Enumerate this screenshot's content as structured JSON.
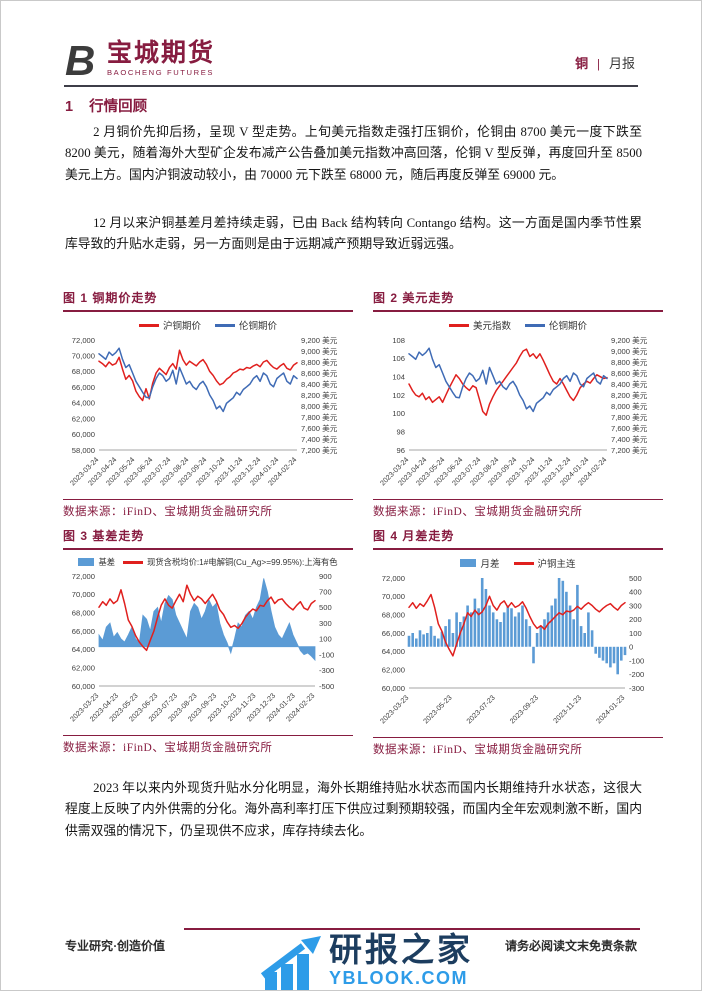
{
  "header": {
    "brand_cn": "宝城期货",
    "brand_en": "BAOCHENG FUTURES",
    "commodity": "铜",
    "divider": "|",
    "report_type": "月报"
  },
  "section": {
    "number": "1",
    "title": "行情回顾"
  },
  "paragraphs": {
    "p1": "2 月铜价先抑后扬，呈现 V 型走势。上旬美元指数走强打压铜价，伦铜由 8700 美元一度下跌至 8200 美元，随着海外大型矿企发布减产公告叠加美元指数冲高回落，伦铜 V 型反弹，再度回升至 8500 美元上方。国内沪铜波动较小，由 70000 元下跌至 68000 元，随后再度反弹至 69000 元。",
    "p2": "12 月以来沪铜基差月差持续走弱，已由 Back 结构转向 Contango 结构。这一方面是国内季节性累库导致的升贴水走弱，另一方面则是由于远期减产预期导致近弱远强。",
    "p3": "2023 年以来内外现货升贴水分化明显，海外长期维持贴水状态而国内长期维持升水状态，这很大程度上反映了内外供需的分化。海外高利率打压下供应过剩预期较强，而国内全年宏观刺激不断，国内供需双强的情况下，仍呈现供不应求，库存持续去化。"
  },
  "strings": {
    "data_source": "数据来源：iFinD、宝城期货金融研究所"
  },
  "footer": {
    "left": "专业研究·创造价值",
    "right": "请务必阅读文末免责条款",
    "watermark_name": "研报之家",
    "watermark_site": "YBLOOK.COM"
  },
  "colors": {
    "brand": "#871c40",
    "red_line": "#e0201e",
    "blue_line": "#3f6bb5",
    "blue_fill": "#5b9bd5"
  },
  "chart_data": [
    {
      "type": "line",
      "title": "图 1 铜期价走势",
      "legend": [
        {
          "label": "沪铜期价",
          "color": "#e0201e",
          "swatch": "line"
        },
        {
          "label": "伦铜期价",
          "color": "#3f6bb5",
          "swatch": "line"
        }
      ],
      "right_pad": 56,
      "left_axis": {
        "min": 58000,
        "max": 72000,
        "ticks": [
          "72,000",
          "70,000",
          "68,000",
          "66,000",
          "64,000",
          "62,000",
          "60,000",
          "58,000"
        ]
      },
      "right_axis": {
        "min": 7200,
        "max": 9200,
        "ticks": [
          "9,200 美元",
          "9,000 美元",
          "8,800 美元",
          "8,600 美元",
          "8,400 美元",
          "8,200 美元",
          "8,000 美元",
          "7,800 美元",
          "7,600 美元",
          "7,400 美元",
          "7,200 美元"
        ]
      },
      "x_labels": [
        "2023-03-24",
        "2023-04-24",
        "2023-05-24",
        "2023-06-24",
        "2023-07-24",
        "2023-08-24",
        "2023-09-24",
        "2023-10-24",
        "2023-11-24",
        "2023-12-24",
        "2024-01-24",
        "2024-02-24"
      ],
      "series": [
        {
          "name": "沪铜期价",
          "axis": "left",
          "style": "line",
          "color": "#e0201e",
          "values": [
            69300,
            69000,
            68600,
            69200,
            68800,
            69000,
            69800,
            68300,
            67000,
            67500,
            66800,
            65500,
            64800,
            64300,
            65800,
            64500,
            66500,
            67800,
            68400,
            68000,
            67600,
            68500,
            69000,
            68300,
            70700,
            69500,
            68800,
            69300,
            69000,
            68700,
            69200,
            69500,
            68900,
            68000,
            67500,
            66800,
            66300,
            66500,
            67000,
            67300,
            67800,
            68000,
            68300,
            68200,
            68500,
            68400,
            68700,
            68900,
            68600,
            69200,
            69400,
            68900,
            68500,
            68300,
            68700,
            69000,
            68400,
            68200,
            68800,
            69100
          ]
        },
        {
          "name": "伦铜期价",
          "axis": "right",
          "style": "line",
          "color": "#3f6bb5",
          "values": [
            8950,
            8900,
            8850,
            8980,
            8920,
            8970,
            9050,
            8850,
            8700,
            8750,
            8600,
            8450,
            8350,
            8250,
            8160,
            8150,
            8350,
            8500,
            8600,
            8550,
            8450,
            8500,
            8650,
            8400,
            8700,
            8550,
            8400,
            8450,
            8350,
            8300,
            8400,
            8450,
            8350,
            8200,
            8100,
            7950,
            8000,
            7900,
            8050,
            8100,
            8150,
            8250,
            8200,
            8300,
            8350,
            8400,
            8500,
            8550,
            8450,
            8600,
            8550,
            8400,
            8350,
            8500,
            8550,
            8600,
            8450,
            8400,
            8550,
            8500
          ]
        }
      ]
    },
    {
      "type": "line",
      "title": "图 2 美元走势",
      "legend": [
        {
          "label": "美元指数",
          "color": "#e0201e",
          "swatch": "line"
        },
        {
          "label": "伦铜期价",
          "color": "#3f6bb5",
          "swatch": "line"
        }
      ],
      "right_pad": 56,
      "left_axis": {
        "min": 96,
        "max": 108,
        "ticks": [
          "108",
          "106",
          "104",
          "102",
          "100",
          "98",
          "96"
        ]
      },
      "right_axis": {
        "min": 7200,
        "max": 9200,
        "ticks": [
          "9,200 美元",
          "9,000 美元",
          "8,800 美元",
          "8,600 美元",
          "8,400 美元",
          "8,200 美元",
          "8,000 美元",
          "7,800 美元",
          "7,600 美元",
          "7,400 美元",
          "7,200 美元"
        ]
      },
      "x_labels": [
        "2023-03-24",
        "2023-04-24",
        "2023-05-24",
        "2023-06-24",
        "2023-07-24",
        "2023-08-24",
        "2023-09-24",
        "2023-10-24",
        "2023-11-24",
        "2023-12-24",
        "2024-01-24",
        "2024-02-24"
      ],
      "series": [
        {
          "name": "美元指数",
          "axis": "left",
          "style": "line",
          "color": "#e0201e",
          "values": [
            103.2,
            102.5,
            102.0,
            101.8,
            102.2,
            101.5,
            101.8,
            101.2,
            101.5,
            101.8,
            101.2,
            102.0,
            102.8,
            103.5,
            104.2,
            103.8,
            103.2,
            102.8,
            102.5,
            103.0,
            102.8,
            101.5,
            100.2,
            99.8,
            101.0,
            101.8,
            102.5,
            103.0,
            103.5,
            104.0,
            104.5,
            105.0,
            105.5,
            106.2,
            106.8,
            107.0,
            106.2,
            106.5,
            106.0,
            106.5,
            105.8,
            105.0,
            104.2,
            103.5,
            103.2,
            103.8,
            103.2,
            102.5,
            101.8,
            101.4,
            102.0,
            102.8,
            103.2,
            103.5,
            103.3,
            103.8,
            104.2,
            104.0,
            103.8,
            103.9
          ]
        },
        {
          "name": "伦铜期价",
          "axis": "right",
          "style": "line",
          "color": "#3f6bb5",
          "values": [
            8950,
            8900,
            8850,
            8980,
            8920,
            8970,
            9050,
            8850,
            8700,
            8750,
            8600,
            8450,
            8350,
            8250,
            8160,
            8150,
            8350,
            8500,
            8600,
            8550,
            8450,
            8500,
            8650,
            8400,
            8700,
            8550,
            8400,
            8450,
            8350,
            8300,
            8400,
            8450,
            8350,
            8200,
            8100,
            7950,
            8000,
            7900,
            8050,
            8100,
            8150,
            8250,
            8200,
            8300,
            8350,
            8400,
            8500,
            8550,
            8450,
            8600,
            8550,
            8400,
            8350,
            8500,
            8550,
            8600,
            8450,
            8400,
            8550,
            8500
          ]
        }
      ]
    },
    {
      "type": "area",
      "title": "图 3 基差走势",
      "legend": [
        {
          "label": "基差",
          "color": "#5b9bd5",
          "swatch": "rect"
        },
        {
          "label": "现货含税均价:1#电解铜(Cu_Ag>=99.95%):上海有色",
          "color": "#e0201e",
          "swatch": "line"
        }
      ],
      "right_pad": 38,
      "left_axis": {
        "min": 60000,
        "max": 72000,
        "ticks": [
          "72,000",
          "70,000",
          "68,000",
          "66,000",
          "64,000",
          "62,000",
          "60,000"
        ]
      },
      "right_axis": {
        "min": -500,
        "max": 900,
        "ticks": [
          "900",
          "700",
          "500",
          "300",
          "100",
          "-100",
          "-300",
          "-500"
        ]
      },
      "x_labels": [
        "2023-03-23",
        "2023-04-23",
        "2023-05-23",
        "2023-06-23",
        "2023-07-23",
        "2023-08-23",
        "2023-09-23",
        "2023-10-23",
        "2023-11-23",
        "2023-12-23",
        "2024-01-23",
        "2024-02-23"
      ],
      "series": [
        {
          "name": "基差",
          "axis": "right",
          "style": "area",
          "color": "#5b9bd5",
          "values": [
            150,
            80,
            250,
            300,
            120,
            180,
            100,
            60,
            150,
            250,
            100,
            50,
            400,
            350,
            200,
            450,
            500,
            300,
            550,
            650,
            600,
            400,
            300,
            200,
            100,
            450,
            550,
            500,
            350,
            450,
            600,
            500,
            550,
            300,
            150,
            50,
            -80,
            100,
            300,
            250,
            400,
            450,
            350,
            500,
            600,
            870,
            700,
            450,
            250,
            150,
            100,
            200,
            300,
            150,
            50,
            -50,
            -100,
            -80,
            -120,
            -170
          ]
        },
        {
          "name": "现货含税均价",
          "axis": "left",
          "style": "line",
          "color": "#e0201e",
          "values": [
            68600,
            69200,
            68800,
            69500,
            69000,
            69300,
            70500,
            69000,
            67200,
            66500,
            65500,
            64800,
            64300,
            63900,
            65000,
            66000,
            67500,
            68800,
            69500,
            68800,
            68500,
            69300,
            70000,
            69200,
            71000,
            70000,
            69300,
            69800,
            69500,
            69000,
            69500,
            70000,
            69300,
            68300,
            67800,
            67000,
            66400,
            66600,
            66300,
            66800,
            67500,
            68000,
            68400,
            68200,
            68800,
            68700,
            69300,
            69700,
            69000,
            69400,
            69500,
            69000,
            68600,
            68300,
            68800,
            69200,
            68500,
            68300,
            69000,
            69300
          ]
        }
      ]
    },
    {
      "type": "bar",
      "title": "图 4 月差走势",
      "legend": [
        {
          "label": "月差",
          "color": "#5b9bd5",
          "swatch": "rect"
        },
        {
          "label": "沪铜主连",
          "color": "#e0201e",
          "swatch": "line"
        }
      ],
      "right_pad": 38,
      "left_axis": {
        "min": 60000,
        "max": 72000,
        "ticks": [
          "72,000",
          "70,000",
          "68,000",
          "66,000",
          "64,000",
          "62,000",
          "60,000"
        ]
      },
      "right_axis": {
        "min": -300,
        "max": 500,
        "ticks": [
          "500",
          "400",
          "300",
          "200",
          "100",
          "0",
          "-100",
          "-200",
          "-300"
        ]
      },
      "x_labels": [
        "2023-03-23",
        "2023-05-23",
        "2023-07-23",
        "2023-09-23",
        "2023-11-23",
        "2024-01-23"
      ],
      "series": [
        {
          "name": "月差",
          "axis": "right",
          "style": "bar",
          "color": "#5b9bd5",
          "values": [
            80,
            100,
            60,
            120,
            90,
            100,
            150,
            80,
            60,
            110,
            150,
            200,
            100,
            250,
            180,
            220,
            300,
            250,
            350,
            280,
            500,
            420,
            300,
            250,
            200,
            180,
            250,
            300,
            280,
            220,
            250,
            300,
            200,
            150,
            -120,
            100,
            150,
            200,
            250,
            300,
            350,
            500,
            480,
            400,
            300,
            200,
            450,
            150,
            100,
            250,
            120,
            -50,
            -80,
            -100,
            -120,
            -150,
            -120,
            -200,
            -100,
            -60
          ]
        },
        {
          "name": "沪铜主连",
          "axis": "left",
          "style": "line",
          "color": "#e0201e",
          "values": [
            68800,
            69300,
            68700,
            69200,
            68900,
            69500,
            70200,
            68800,
            67000,
            66200,
            65000,
            64200,
            63500,
            64800,
            66000,
            67000,
            68200,
            67800,
            68500,
            68000,
            68300,
            69000,
            70000,
            69000,
            68500,
            69200,
            69500,
            68800,
            69300,
            68800,
            69000,
            69400,
            68700,
            67800,
            67000,
            66500,
            66800,
            66400,
            67000,
            67400,
            67800,
            68200,
            68000,
            68400,
            68300,
            68500,
            68900,
            68600,
            69000,
            69300,
            69000,
            68600,
            68300,
            68700,
            69000,
            69200,
            68800,
            68500,
            69000,
            69300
          ]
        }
      ]
    }
  ]
}
